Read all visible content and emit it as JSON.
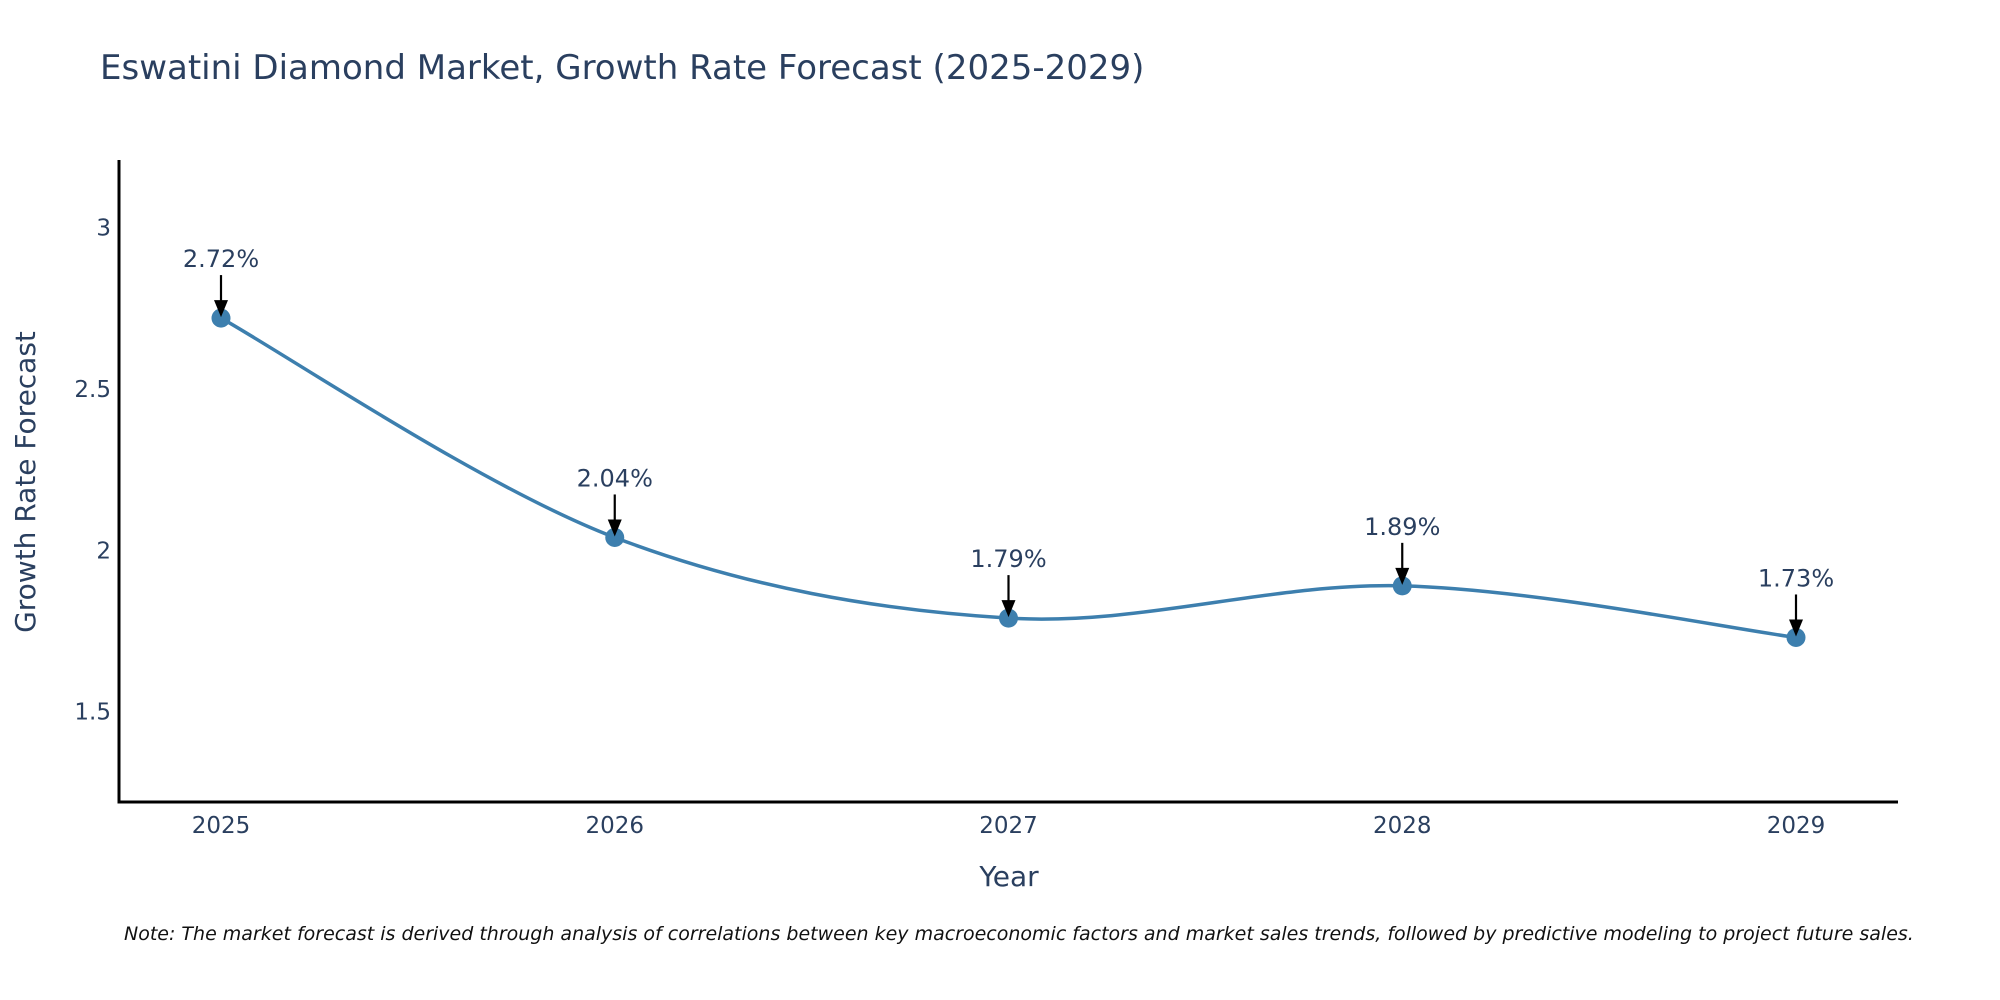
{
  "chart_data": {
    "type": "line",
    "title": "Eswatini Diamond Market, Growth Rate Forecast (2025-2029)",
    "xlabel": "Year",
    "ylabel": "Growth Rate Forecast",
    "categories": [
      "2025",
      "2026",
      "2027",
      "2028",
      "2029"
    ],
    "series": [
      {
        "name": "Growth Rate Forecast",
        "values": [
          2.72,
          2.04,
          1.79,
          1.89,
          1.73
        ],
        "color": "#3d7fae",
        "smoothing": "spline"
      }
    ],
    "data_labels": [
      "2.72%",
      "2.04%",
      "1.79%",
      "1.89%",
      "1.73%"
    ],
    "ylim": [
      1.22,
      3.21
    ],
    "y_ticks": [
      1.5,
      2,
      2.5,
      3
    ],
    "y_tick_labels": [
      "1.5",
      "2",
      "2.5",
      "3"
    ],
    "grid": false,
    "axis_color": "#000000",
    "annotation_arrow_color": "#000000",
    "note": "Note: The market forecast is derived through analysis of correlations between key macroeconomic factors and market sales trends, followed by predictive modeling to project future sales."
  }
}
